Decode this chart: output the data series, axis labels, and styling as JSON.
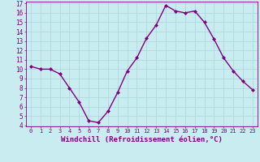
{
  "x": [
    0,
    1,
    2,
    3,
    4,
    5,
    6,
    7,
    8,
    9,
    10,
    11,
    12,
    13,
    14,
    15,
    16,
    17,
    18,
    19,
    20,
    21,
    22,
    23
  ],
  "y": [
    10.3,
    10.0,
    10.0,
    9.5,
    8.0,
    6.5,
    4.5,
    4.3,
    5.5,
    7.5,
    9.8,
    11.2,
    13.3,
    14.7,
    16.8,
    16.2,
    16.0,
    16.2,
    15.0,
    13.2,
    11.2,
    9.8,
    8.7,
    7.8
  ],
  "line_color": "#800080",
  "marker": "D",
  "marker_size": 2.0,
  "bg_color": "#c8ecf0",
  "grid_color": "#b0d8e0",
  "xlabel": "Windchill (Refroidissement éolien,°C)",
  "ylim": [
    4,
    17
  ],
  "xlim": [
    -0.5,
    23.5
  ],
  "yticks": [
    4,
    5,
    6,
    7,
    8,
    9,
    10,
    11,
    12,
    13,
    14,
    15,
    16,
    17
  ],
  "xticks": [
    0,
    1,
    2,
    3,
    4,
    5,
    6,
    7,
    8,
    9,
    10,
    11,
    12,
    13,
    14,
    15,
    16,
    17,
    18,
    19,
    20,
    21,
    22,
    23
  ],
  "tick_color": "#800080",
  "label_fontsize": 6.5,
  "tick_fontsize": 5.5,
  "xtick_fontsize": 5.0,
  "line_width": 1.0
}
